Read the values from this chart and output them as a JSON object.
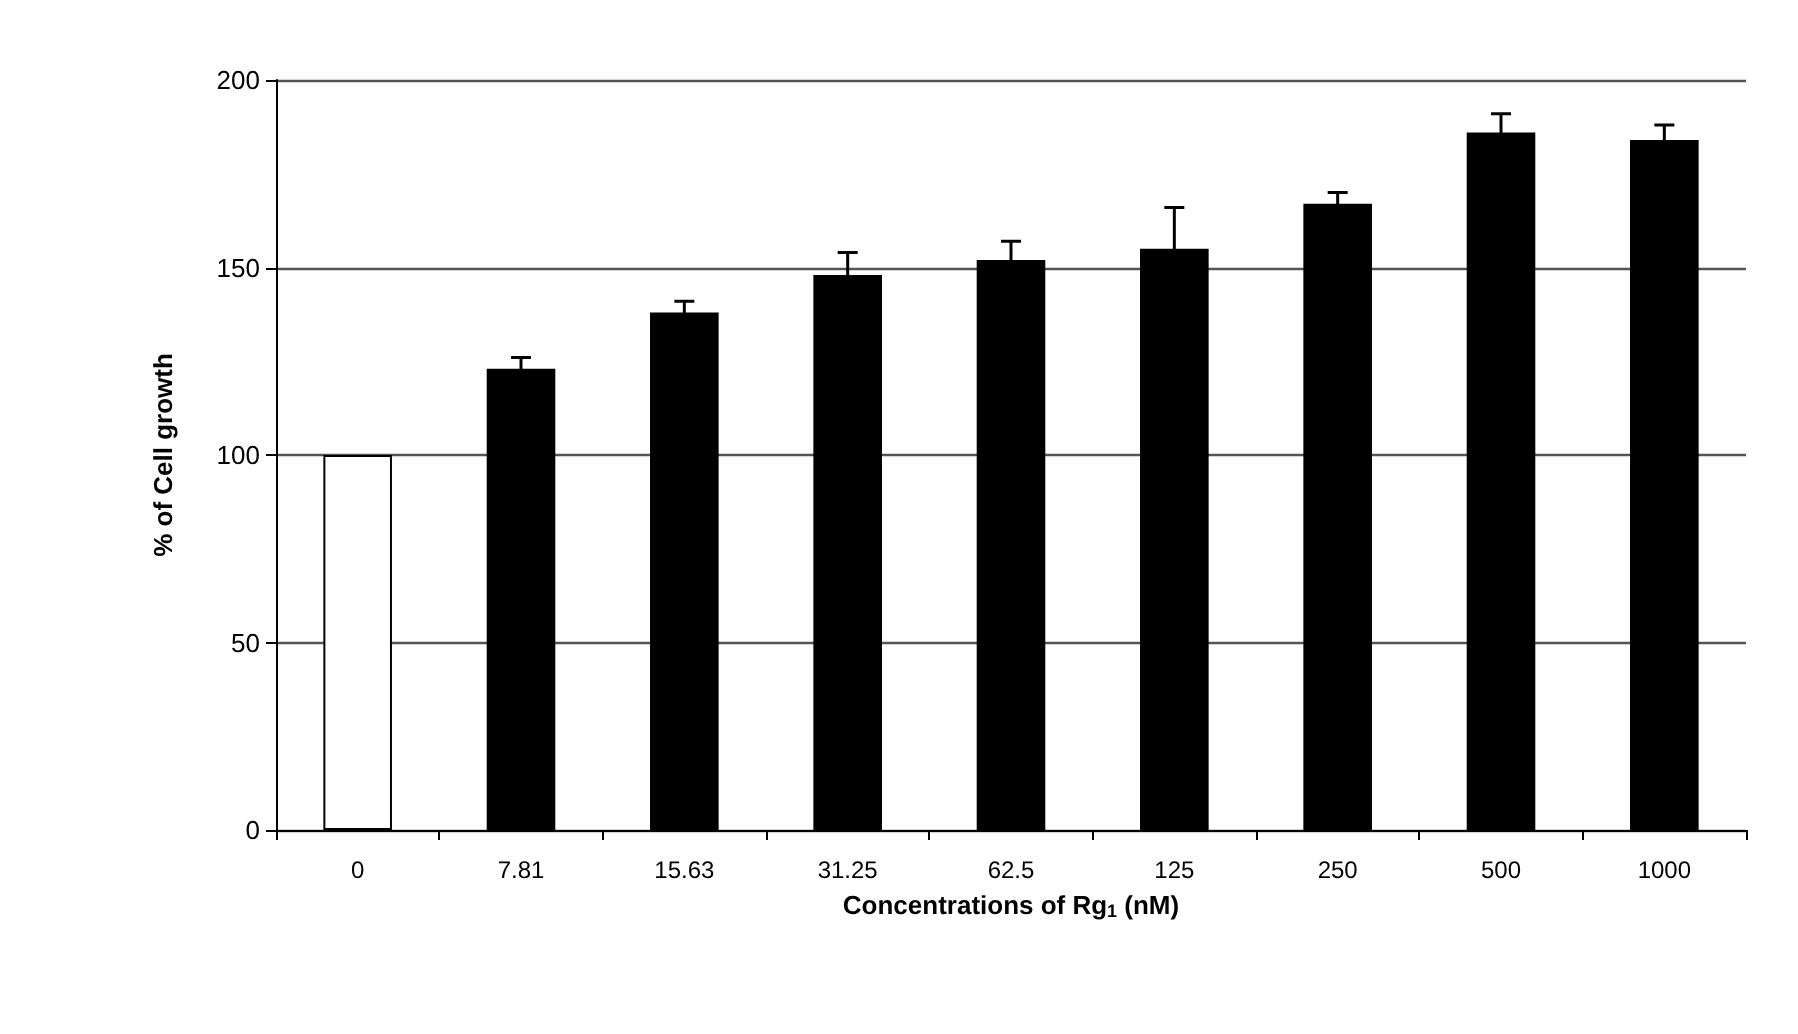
{
  "chart_data": {
    "type": "bar",
    "xlabel": "Concentrations of Rg$_{1}$ (nM)",
    "ylabel": "% of Cell growth",
    "categories": [
      "0",
      "7.81",
      "15.63",
      "31.25",
      "62.5",
      "125",
      "250",
      "500",
      "1000"
    ],
    "values": [
      100,
      123,
      138,
      148,
      152,
      155,
      167,
      186,
      184
    ],
    "errors": [
      null,
      3,
      3,
      6,
      5,
      11,
      3,
      5,
      4
    ],
    "colors": [
      "#ffffff",
      "#000000",
      "#000000",
      "#000000",
      "#000000",
      "#000000",
      "#000000",
      "#000000",
      "#000000"
    ],
    "ylim": [
      0,
      200
    ],
    "yticks": [
      0,
      50,
      100,
      150,
      200
    ],
    "grid": "y"
  }
}
